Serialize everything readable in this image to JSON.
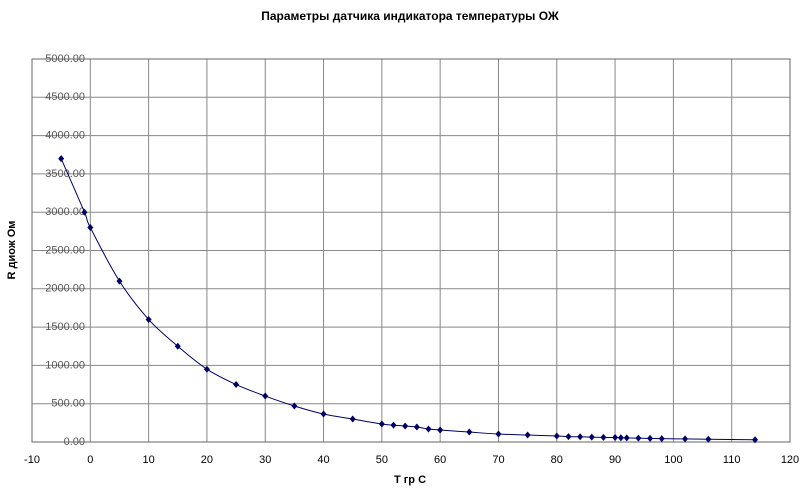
{
  "chart_data": {
    "type": "scatter",
    "title": "Параметры датчика индикатора температуры ОЖ",
    "xlabel": "T гр С",
    "ylabel": "R диож Ом",
    "x": [
      -5,
      -1,
      0,
      5,
      10,
      15,
      20,
      25,
      30,
      35,
      40,
      45,
      50,
      52,
      54,
      56,
      58,
      60,
      65,
      70,
      75,
      80,
      82,
      84,
      86,
      88,
      90,
      91,
      92,
      94,
      96,
      98,
      102,
      106,
      114
    ],
    "values": [
      3700,
      3000,
      2800,
      2100,
      1600,
      1250,
      950,
      750,
      600,
      470,
      365,
      300,
      235,
      220,
      209,
      196,
      170,
      157,
      130,
      104,
      91,
      78,
      70,
      68,
      64,
      60,
      58,
      56,
      54,
      50,
      47,
      44,
      40,
      36,
      30
    ],
    "color": "#000066",
    "xlim": [
      -10,
      120
    ],
    "xticks": [
      -10,
      0,
      10,
      20,
      30,
      40,
      50,
      60,
      70,
      80,
      90,
      100,
      110,
      120
    ],
    "ylim": [
      0,
      5000
    ],
    "yticks": [
      {
        "value": 0,
        "label": "0.00"
      },
      {
        "value": 500,
        "label": "500.00"
      },
      {
        "value": 1000,
        "label": "1000.00"
      },
      {
        "value": 1500,
        "label": "1500.00"
      },
      {
        "value": 2000,
        "label": "2000.00"
      },
      {
        "value": 2500,
        "label": "2500.00"
      },
      {
        "value": 3000,
        "label": "3000.00"
      },
      {
        "value": 3500,
        "label": "3500.00"
      },
      {
        "value": 4000,
        "label": "4000.00"
      },
      {
        "value": 4500,
        "label": "4500.00"
      },
      {
        "value": 5000,
        "label": "5000.00"
      }
    ],
    "grid": true
  }
}
